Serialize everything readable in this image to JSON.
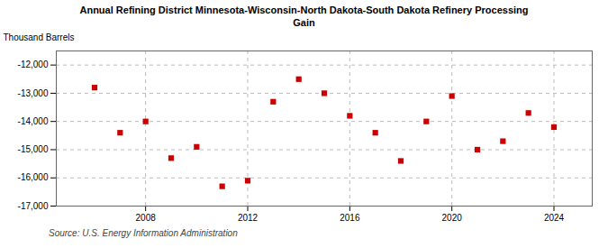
{
  "chart_data": {
    "type": "scatter",
    "title": "Annual Refining District Minnesota-Wisconsin-North Dakota-South Dakota Refinery Processing\nGain",
    "ylabel": "Thousand Barrels",
    "annotation": "Source: U.S. Energy Information Administration",
    "x": [
      2006,
      2007,
      2008,
      2009,
      2010,
      2011,
      2012,
      2013,
      2014,
      2015,
      2016,
      2017,
      2018,
      2019,
      2020,
      2021,
      2022,
      2023,
      2024
    ],
    "values": [
      -12800,
      -14400,
      -14000,
      -15300,
      -14900,
      -16300,
      -16100,
      -13300,
      -12500,
      -13000,
      -13800,
      -14400,
      -15400,
      -14000,
      -13100,
      -15000,
      -14700,
      -13700,
      -14200
    ],
    "color": "#cc0000",
    "marker": "square",
    "xlim": [
      2004.5,
      2025.5
    ],
    "xticks": [
      2008,
      2012,
      2016,
      2020,
      2024
    ],
    "ylim": [
      -17000,
      -11500
    ],
    "yticks": [
      {
        "value": -17000,
        "label": "-17,000"
      },
      {
        "value": -16000,
        "label": "-16,000"
      },
      {
        "value": -15000,
        "label": "-15,000"
      },
      {
        "value": -14000,
        "label": "-14,000"
      },
      {
        "value": -13000,
        "label": "-13,000"
      },
      {
        "value": -12000,
        "label": "-12,000"
      }
    ],
    "grid": true
  }
}
